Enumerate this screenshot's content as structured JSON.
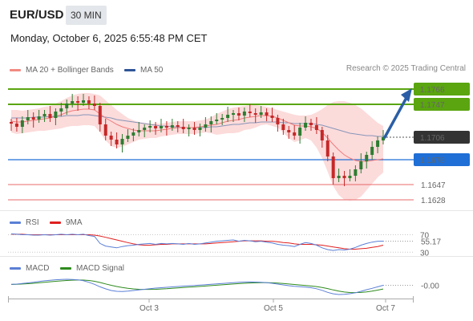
{
  "header": {
    "symbol": "EUR/USD",
    "interval": "30 MIN",
    "datetime": "Monday, October 6, 2025 6:55:48 PM CET",
    "credit": "Research © 2025 Trading Central"
  },
  "legends": {
    "main": [
      {
        "label": "MA 20 + Bollinger Bands",
        "color": "#f28b82"
      },
      {
        "label": "MA 50",
        "color": "#2f5597"
      }
    ],
    "rsi": [
      {
        "label": "RSI",
        "color": "#5b7fd6"
      },
      {
        "label": "9MA",
        "color": "#e02020"
      }
    ],
    "macd": [
      {
        "label": "MACD",
        "color": "#5b7fd6"
      },
      {
        "label": "MACD Signal",
        "color": "#2e8b1e"
      }
    ]
  },
  "colors": {
    "up_candle": "#2e7d32",
    "down_candle": "#c62828",
    "resistance": "#5aa510",
    "pivot": "#1f6fd6",
    "support": "#e86a6a",
    "last_price": "#333333",
    "arrow": "#2b5ea6",
    "band_fill": "#fbd5d5"
  },
  "chart_data": [
    {
      "type": "candlestick",
      "title": "EUR/USD",
      "ylim": [
        1.1615,
        1.1775
      ],
      "x_ticks": [
        "Oct 3",
        "Oct 5",
        "Oct 7"
      ],
      "price_levels": [
        {
          "value": 1.1766,
          "label": "1.1766",
          "kind": "resistance"
        },
        {
          "value": 1.1747,
          "label": "1.1747",
          "kind": "resistance"
        },
        {
          "value": 1.1706,
          "label": "1.1706",
          "kind": "last"
        },
        {
          "value": 1.1678,
          "label": "1.1678",
          "kind": "pivot"
        },
        {
          "value": 1.1647,
          "label": "1.1647",
          "kind": "support"
        },
        {
          "value": 1.1628,
          "label": "1.1628",
          "kind": "support"
        }
      ],
      "projection": {
        "from": 1.1706,
        "to": 1.1766
      },
      "close": [
        1.1723,
        1.1719,
        1.1727,
        1.1731,
        1.1728,
        1.1732,
        1.1735,
        1.173,
        1.1738,
        1.1742,
        1.1748,
        1.1751,
        1.1749,
        1.1752,
        1.1748,
        1.1745,
        1.1722,
        1.1708,
        1.1703,
        1.1697,
        1.1704,
        1.1708,
        1.1712,
        1.1715,
        1.1718,
        1.172,
        1.1717,
        1.172,
        1.1718,
        1.1721,
        1.1719,
        1.1716,
        1.1718,
        1.1715,
        1.1718,
        1.1722,
        1.1726,
        1.1728,
        1.173,
        1.1734,
        1.1736,
        1.1733,
        1.1738,
        1.1736,
        1.1734,
        1.1737,
        1.1733,
        1.173,
        1.1722,
        1.1715,
        1.1712,
        1.1708,
        1.1718,
        1.1724,
        1.1721,
        1.1715,
        1.1702,
        1.1682,
        1.1655,
        1.1658,
        1.1655,
        1.1658,
        1.1666,
        1.1676,
        1.1684,
        1.1694,
        1.1702,
        1.1706
      ],
      "ma20": [
        1.1726,
        1.1725,
        1.1725,
        1.1726,
        1.1727,
        1.1728,
        1.1729,
        1.173,
        1.1732,
        1.1734,
        1.1737,
        1.1739,
        1.174,
        1.1741,
        1.1741,
        1.174,
        1.1735,
        1.173,
        1.1726,
        1.1722,
        1.1719,
        1.1717,
        1.1715,
        1.1714,
        1.1714,
        1.1714,
        1.1714,
        1.1715,
        1.1716,
        1.1717,
        1.1718,
        1.1718,
        1.1718,
        1.1718,
        1.1719,
        1.172,
        1.1721,
        1.1722,
        1.1724,
        1.1726,
        1.1727,
        1.1728,
        1.173,
        1.1731,
        1.1732,
        1.1733,
        1.1733,
        1.1732,
        1.173,
        1.1727,
        1.1724,
        1.1721,
        1.172,
        1.172,
        1.1719,
        1.1717,
        1.1712,
        1.1705,
        1.1697,
        1.169,
        1.1684,
        1.168,
        1.1677,
        1.1676,
        1.1676,
        1.1677,
        1.1678,
        1.1679
      ],
      "bb_upper": [
        1.174,
        1.174,
        1.1739,
        1.174,
        1.1741,
        1.1742,
        1.1744,
        1.1745,
        1.1748,
        1.1751,
        1.1755,
        1.1758,
        1.176,
        1.1761,
        1.1761,
        1.176,
        1.1758,
        1.1752,
        1.1746,
        1.174,
        1.1735,
        1.173,
        1.1727,
        1.1725,
        1.1724,
        1.1723,
        1.1723,
        1.1723,
        1.1724,
        1.1725,
        1.1726,
        1.1726,
        1.1726,
        1.1726,
        1.1727,
        1.1728,
        1.1731,
        1.1735,
        1.1738,
        1.1741,
        1.1743,
        1.1744,
        1.1745,
        1.1746,
        1.1746,
        1.1745,
        1.1744,
        1.1742,
        1.174,
        1.1738,
        1.1736,
        1.1734,
        1.1733,
        1.1733,
        1.1734,
        1.1737,
        1.1741,
        1.1746,
        1.175,
        1.1751,
        1.1751,
        1.1749,
        1.1746,
        1.1742,
        1.1736,
        1.173,
        1.1724,
        1.172
      ],
      "bb_lower": [
        1.1712,
        1.171,
        1.1711,
        1.1712,
        1.1713,
        1.1714,
        1.1714,
        1.1715,
        1.1716,
        1.1717,
        1.1719,
        1.172,
        1.172,
        1.1721,
        1.1721,
        1.172,
        1.1712,
        1.1702,
        1.1695,
        1.1693,
        1.1694,
        1.1697,
        1.17,
        1.1703,
        1.1704,
        1.1705,
        1.1705,
        1.1707,
        1.1708,
        1.1709,
        1.171,
        1.171,
        1.171,
        1.171,
        1.1711,
        1.1712,
        1.1711,
        1.1709,
        1.171,
        1.1711,
        1.1711,
        1.1712,
        1.1715,
        1.1716,
        1.1718,
        1.1721,
        1.1722,
        1.172,
        1.1718,
        1.1712,
        1.1705,
        1.17,
        1.1702,
        1.1705,
        1.1702,
        1.1693,
        1.168,
        1.1663,
        1.1645,
        1.1634,
        1.1628,
        1.1627,
        1.1628,
        1.1632,
        1.164,
        1.1648,
        1.1656,
        1.1662
      ],
      "ma50": [
        1.173,
        1.173,
        1.173,
        1.173,
        1.1731,
        1.1731,
        1.1731,
        1.1732,
        1.1732,
        1.1732,
        1.1733,
        1.1733,
        1.1733,
        1.1734,
        1.1734,
        1.1733,
        1.1732,
        1.1731,
        1.173,
        1.1728,
        1.1727,
        1.1726,
        1.1725,
        1.1724,
        1.1723,
        1.1722,
        1.1721,
        1.172,
        1.172,
        1.1719,
        1.1719,
        1.1718,
        1.1718,
        1.1718,
        1.1718,
        1.1718,
        1.1719,
        1.1719,
        1.172,
        1.1721,
        1.1722,
        1.1722,
        1.1723,
        1.1724,
        1.1724,
        1.1725,
        1.1725,
        1.1725,
        1.1725,
        1.1724,
        1.1724,
        1.1723,
        1.1723,
        1.1723,
        1.1723,
        1.1722,
        1.1721,
        1.1719,
        1.1717,
        1.1715,
        1.1713,
        1.1711,
        1.171,
        1.1709,
        1.1708,
        1.1708,
        1.1707,
        1.1707
      ]
    },
    {
      "type": "line",
      "title": "RSI",
      "ylim": [
        25,
        80
      ],
      "y_ticks": [
        {
          "value": 70,
          "label": "70"
        },
        {
          "value": 30,
          "label": "30"
        }
      ],
      "last_label": "55.17",
      "series": [
        {
          "name": "RSI",
          "values": [
            72,
            71,
            70,
            70,
            69,
            69,
            70,
            69,
            70,
            71,
            70,
            71,
            70,
            71,
            68,
            66,
            50,
            44,
            42,
            40,
            43,
            45,
            46,
            48,
            49,
            50,
            48,
            50,
            49,
            50,
            49,
            48,
            50,
            48,
            49,
            51,
            53,
            55,
            56,
            57,
            58,
            55,
            57,
            56,
            54,
            55,
            53,
            51,
            48,
            46,
            45,
            43,
            48,
            52,
            50,
            46,
            40,
            36,
            34,
            36,
            35,
            37,
            41,
            46,
            50,
            53,
            55,
            55.17
          ]
        },
        {
          "name": "9MA",
          "values": [
            71,
            71,
            71,
            70,
            70,
            70,
            70,
            70,
            70,
            70,
            70,
            70,
            70,
            70,
            70,
            69,
            67,
            64,
            61,
            58,
            55,
            52,
            49,
            47,
            46,
            46,
            47,
            48,
            48,
            49,
            49,
            49,
            49,
            49,
            49,
            49,
            50,
            51,
            52,
            53,
            54,
            55,
            56,
            56,
            56,
            56,
            55,
            55,
            54,
            52,
            51,
            49,
            48,
            48,
            48,
            47,
            46,
            44,
            42,
            40,
            38,
            37,
            37,
            38,
            39,
            41,
            43,
            46
          ]
        }
      ]
    },
    {
      "type": "line",
      "title": "MACD",
      "ylim": [
        -1,
        1
      ],
      "last_label": "-0.00",
      "series": [
        {
          "name": "MACD",
          "values": [
            0.1,
            0.12,
            0.18,
            0.24,
            0.3,
            0.38,
            0.45,
            0.5,
            0.55,
            0.58,
            0.6,
            0.58,
            0.54,
            0.46,
            0.3,
            0.1,
            -0.15,
            -0.35,
            -0.52,
            -0.6,
            -0.62,
            -0.58,
            -0.52,
            -0.46,
            -0.4,
            -0.34,
            -0.28,
            -0.24,
            -0.2,
            -0.16,
            -0.12,
            -0.08,
            -0.05,
            -0.02,
            0.02,
            0.06,
            0.1,
            0.14,
            0.18,
            0.22,
            0.26,
            0.3,
            0.32,
            0.33,
            0.32,
            0.3,
            0.26,
            0.2,
            0.12,
            0.04,
            -0.04,
            -0.1,
            -0.14,
            -0.18,
            -0.24,
            -0.34,
            -0.5,
            -0.7,
            -0.85,
            -0.92,
            -0.9,
            -0.84,
            -0.74,
            -0.6,
            -0.44,
            -0.3,
            -0.15,
            -0.0
          ]
        },
        {
          "name": "MACD Signal",
          "values": [
            0.08,
            0.1,
            0.13,
            0.16,
            0.2,
            0.25,
            0.3,
            0.35,
            0.4,
            0.44,
            0.48,
            0.51,
            0.53,
            0.52,
            0.48,
            0.4,
            0.28,
            0.14,
            0.0,
            -0.12,
            -0.22,
            -0.3,
            -0.36,
            -0.4,
            -0.41,
            -0.41,
            -0.4,
            -0.37,
            -0.34,
            -0.3,
            -0.26,
            -0.22,
            -0.18,
            -0.15,
            -0.11,
            -0.07,
            -0.03,
            0.01,
            0.05,
            0.09,
            0.13,
            0.17,
            0.2,
            0.23,
            0.25,
            0.26,
            0.26,
            0.25,
            0.22,
            0.18,
            0.13,
            0.08,
            0.03,
            -0.02,
            -0.07,
            -0.13,
            -0.22,
            -0.33,
            -0.46,
            -0.58,
            -0.67,
            -0.72,
            -0.73,
            -0.71,
            -0.66,
            -0.58,
            -0.48,
            -0.37
          ]
        }
      ]
    }
  ]
}
